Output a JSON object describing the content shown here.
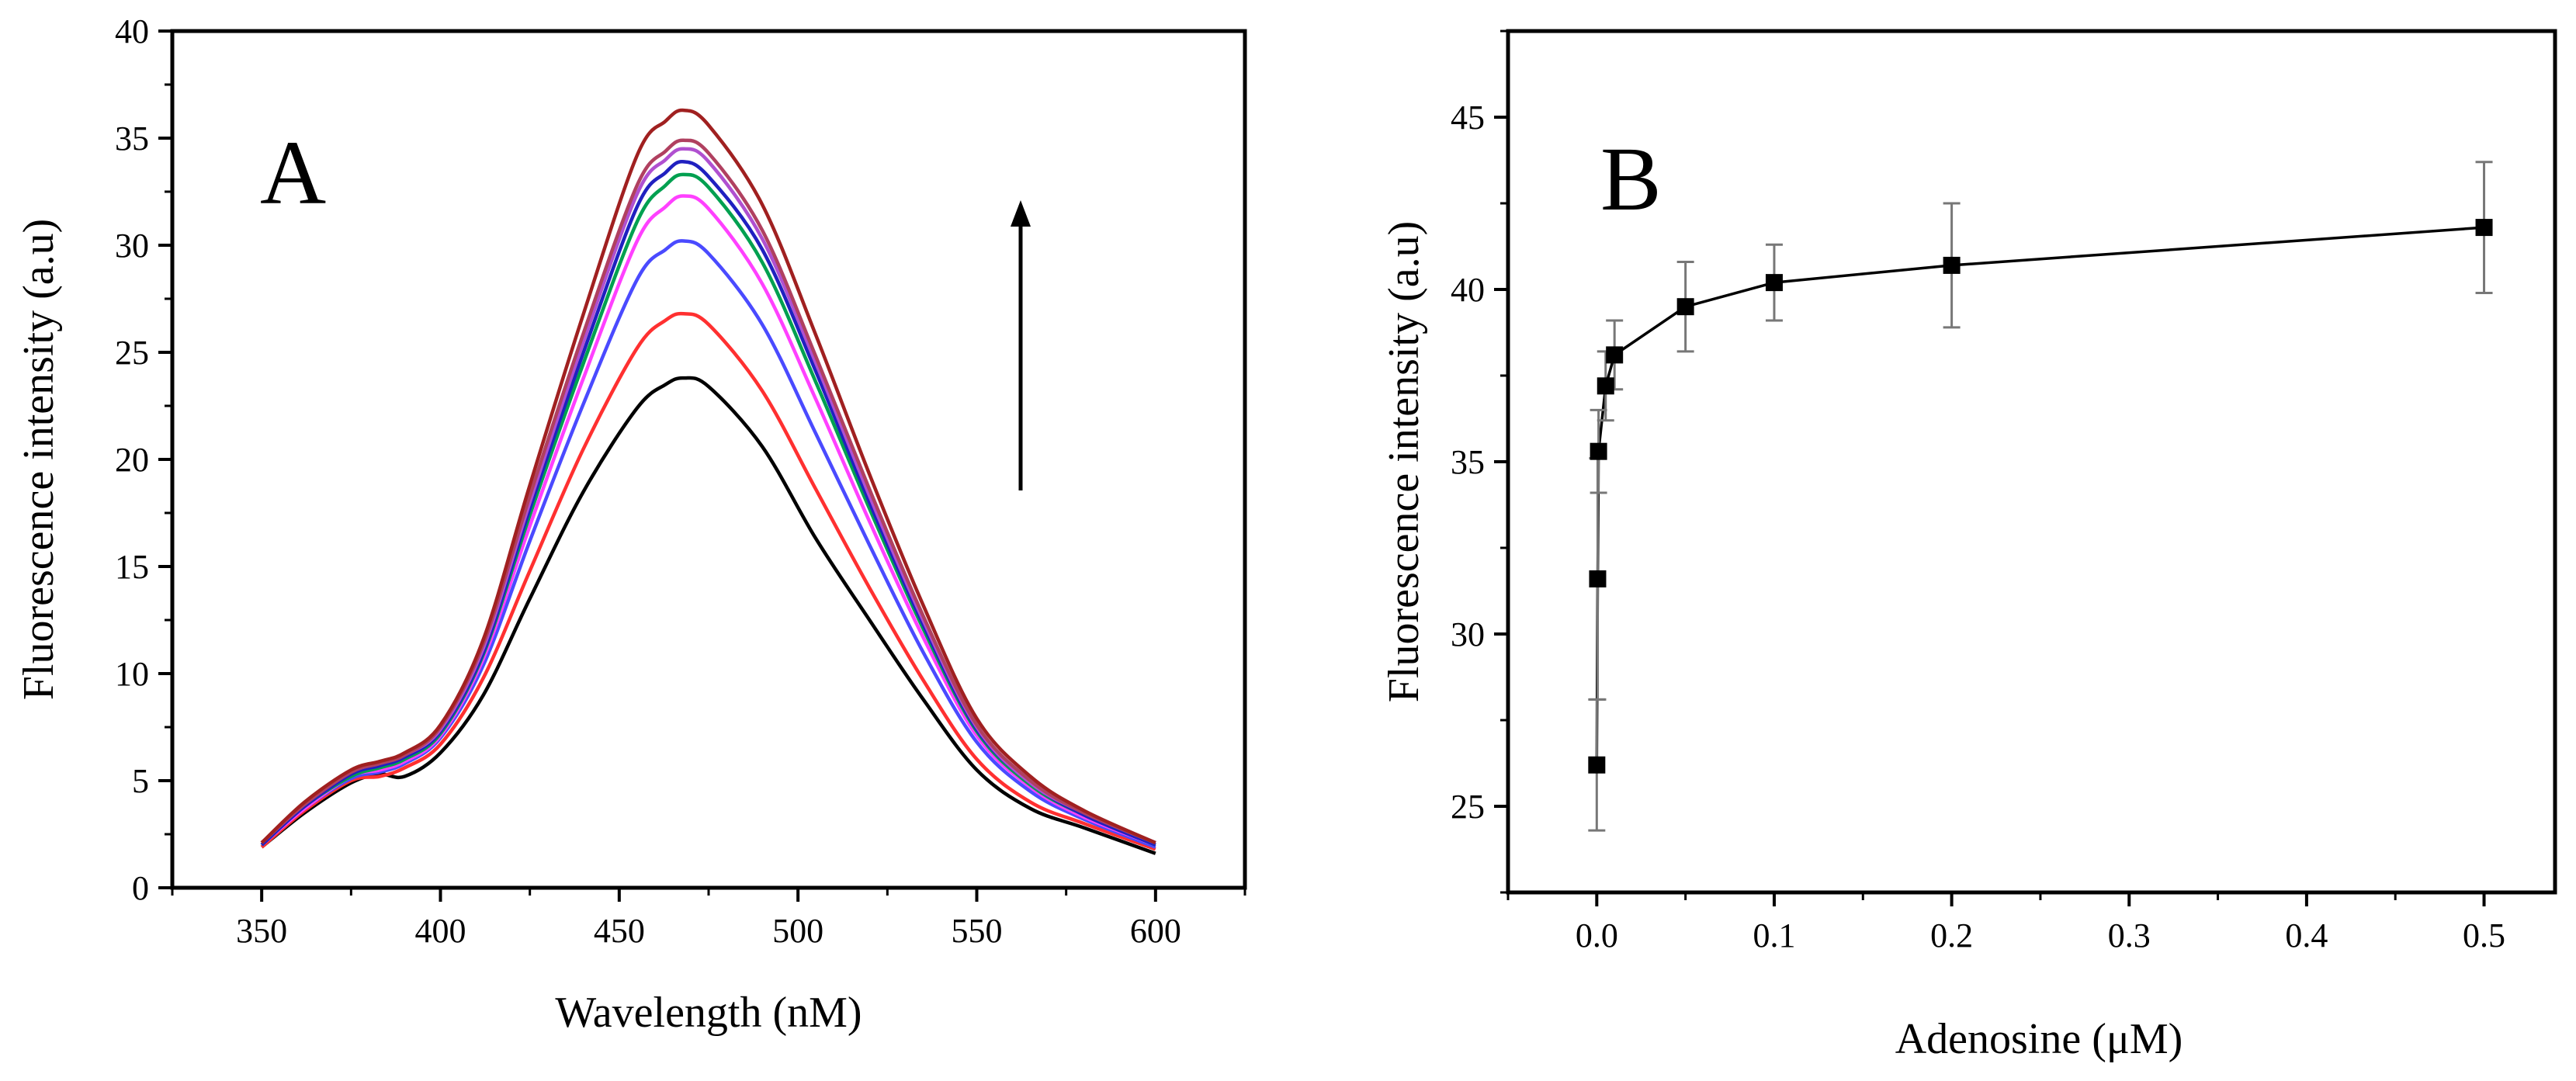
{
  "chart_data": [
    {
      "type": "line",
      "panel_label": "A",
      "xlabel": "Wavelength (nM)",
      "ylabel": "Fluorescence intensity (a.u)",
      "xlim": [
        325,
        625
      ],
      "ylim": [
        0,
        40
      ],
      "xticks": [
        350,
        400,
        450,
        500,
        550,
        600
      ],
      "yticks": [
        0,
        5,
        10,
        15,
        20,
        25,
        30,
        35,
        40
      ],
      "annotation": "upward arrow indicating increasing intensity",
      "x": [
        350,
        362,
        375,
        383,
        390,
        400,
        412,
        425,
        440,
        455,
        463,
        468,
        475,
        490,
        505,
        520,
        535,
        550,
        565,
        580,
        600
      ],
      "series": [
        {
          "color": "#000000",
          "values": [
            1.9,
            3.5,
            4.9,
            5.3,
            5.2,
            6.3,
            9.0,
            13.5,
            18.5,
            22.4,
            23.5,
            23.8,
            23.4,
            20.6,
            16.3,
            12.5,
            8.8,
            5.5,
            3.7,
            2.8,
            1.6
          ]
        },
        {
          "color": "#ff3030",
          "values": [
            1.9,
            3.6,
            5.0,
            5.2,
            5.6,
            6.7,
            9.8,
            14.8,
            20.5,
            25.2,
            26.5,
            26.8,
            26.3,
            23.2,
            18.6,
            14.0,
            9.7,
            6.0,
            4.0,
            3.0,
            1.8
          ]
        },
        {
          "color": "#4a4aff",
          "values": [
            2.0,
            3.7,
            5.1,
            5.4,
            5.8,
            7.0,
            10.4,
            16.2,
            22.6,
            28.4,
            29.8,
            30.2,
            29.6,
            26.3,
            21.2,
            16.0,
            11.0,
            6.8,
            4.5,
            3.2,
            1.9
          ]
        },
        {
          "color": "#ff40ff",
          "values": [
            2.0,
            3.7,
            5.2,
            5.5,
            5.9,
            7.1,
            10.7,
            16.9,
            23.8,
            30.2,
            31.8,
            32.3,
            31.7,
            28.2,
            22.8,
            17.1,
            11.7,
            7.1,
            4.7,
            3.3,
            2.0
          ]
        },
        {
          "color": "#00a050",
          "values": [
            2.0,
            3.8,
            5.2,
            5.6,
            6.0,
            7.2,
            10.9,
            17.4,
            24.5,
            31.1,
            32.8,
            33.3,
            32.7,
            29.2,
            23.6,
            17.7,
            12.1,
            7.3,
            4.8,
            3.4,
            2.0
          ]
        },
        {
          "color": "#2020c0",
          "values": [
            2.0,
            3.8,
            5.3,
            5.7,
            6.1,
            7.3,
            11.0,
            17.7,
            25.0,
            31.8,
            33.4,
            33.9,
            33.2,
            29.8,
            24.1,
            18.0,
            12.3,
            7.4,
            4.9,
            3.4,
            2.0
          ]
        },
        {
          "color": "#b050d0",
          "values": [
            2.1,
            3.9,
            5.4,
            5.8,
            6.2,
            7.4,
            11.2,
            18.0,
            25.5,
            32.4,
            34.0,
            34.5,
            33.9,
            30.3,
            24.5,
            18.3,
            12.5,
            7.5,
            4.9,
            3.5,
            2.1
          ]
        },
        {
          "color": "#b04060",
          "values": [
            2.1,
            3.9,
            5.4,
            5.8,
            6.2,
            7.5,
            11.4,
            18.3,
            25.9,
            32.8,
            34.4,
            34.9,
            34.3,
            30.7,
            24.8,
            18.6,
            12.7,
            7.6,
            5.0,
            3.5,
            2.1
          ]
        },
        {
          "color": "#a02020",
          "values": [
            2.1,
            4.0,
            5.5,
            5.9,
            6.3,
            7.6,
            11.6,
            18.8,
            26.8,
            34.2,
            35.8,
            36.3,
            35.6,
            31.9,
            25.8,
            19.3,
            13.2,
            7.9,
            5.2,
            3.6,
            2.1
          ]
        }
      ]
    },
    {
      "type": "scatter",
      "panel_label": "B",
      "xlabel": "Adenosine (μM)",
      "ylabel": "Fluorescence intensity (a.u)",
      "xlim": [
        -0.05,
        0.54
      ],
      "ylim": [
        22.5,
        47.5
      ],
      "xticks": [
        0.0,
        0.1,
        0.2,
        0.3,
        0.4,
        0.5
      ],
      "xtick_labels": [
        "0.0",
        "0.1",
        "0.2",
        "0.3",
        "0.4",
        "0.5"
      ],
      "yticks": [
        25,
        30,
        35,
        40,
        45
      ],
      "connected": true,
      "error_bars": true,
      "x": [
        0.0,
        0.0005,
        0.001,
        0.005,
        0.01,
        0.05,
        0.1,
        0.2,
        0.5
      ],
      "values": [
        26.2,
        31.6,
        35.3,
        37.2,
        38.1,
        39.5,
        40.2,
        40.7,
        41.8
      ],
      "errors": [
        1.9,
        3.5,
        1.2,
        1.0,
        1.0,
        1.3,
        1.1,
        1.8,
        1.9
      ]
    }
  ]
}
